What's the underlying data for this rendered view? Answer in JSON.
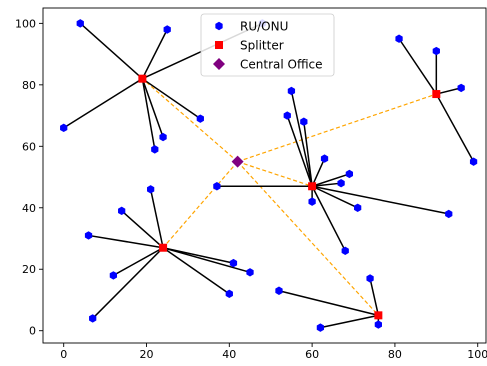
{
  "chart_data": {
    "type": "scatter",
    "xlim": [
      -5,
      102
    ],
    "ylim": [
      -4,
      105
    ],
    "x_ticks": [
      0,
      20,
      40,
      60,
      80,
      100
    ],
    "y_ticks": [
      0,
      20,
      40,
      60,
      80,
      100
    ],
    "grid": false,
    "legend_position": "top-center",
    "legend": [
      {
        "label": "RU/ONU",
        "marker": "hexagon",
        "color": "#0000ff"
      },
      {
        "label": "Splitter",
        "marker": "square",
        "color": "#ff0000"
      },
      {
        "label": "Central Office",
        "marker": "diamond",
        "color": "#800080"
      }
    ],
    "central_office": {
      "x": 42,
      "y": 55
    },
    "splitters": [
      {
        "x": 19,
        "y": 82
      },
      {
        "x": 60,
        "y": 47
      },
      {
        "x": 90,
        "y": 77
      },
      {
        "x": 24,
        "y": 27
      },
      {
        "x": 76,
        "y": 5
      }
    ],
    "ru_onus": [
      {
        "x": 4,
        "y": 100,
        "splitter": 0
      },
      {
        "x": 25,
        "y": 98,
        "splitter": 0
      },
      {
        "x": 48,
        "y": 100,
        "splitter": 0
      },
      {
        "x": 0,
        "y": 66,
        "splitter": 0
      },
      {
        "x": 33,
        "y": 69,
        "splitter": 0
      },
      {
        "x": 24,
        "y": 63,
        "splitter": 0
      },
      {
        "x": 22,
        "y": 59,
        "splitter": 0
      },
      {
        "x": 55,
        "y": 78,
        "splitter": 1
      },
      {
        "x": 54,
        "y": 70,
        "splitter": 1
      },
      {
        "x": 58,
        "y": 68,
        "splitter": 1
      },
      {
        "x": 63,
        "y": 56,
        "splitter": 1
      },
      {
        "x": 69,
        "y": 51,
        "splitter": 1
      },
      {
        "x": 67,
        "y": 48,
        "splitter": 1
      },
      {
        "x": 37,
        "y": 47,
        "splitter": 1
      },
      {
        "x": 60,
        "y": 42,
        "splitter": 1
      },
      {
        "x": 71,
        "y": 40,
        "splitter": 1
      },
      {
        "x": 93,
        "y": 38,
        "splitter": 1
      },
      {
        "x": 68,
        "y": 26,
        "splitter": 1
      },
      {
        "x": 81,
        "y": 95,
        "splitter": 2
      },
      {
        "x": 90,
        "y": 91,
        "splitter": 2
      },
      {
        "x": 96,
        "y": 79,
        "splitter": 2
      },
      {
        "x": 99,
        "y": 55,
        "splitter": 2
      },
      {
        "x": 21,
        "y": 46,
        "splitter": 3
      },
      {
        "x": 14,
        "y": 39,
        "splitter": 3
      },
      {
        "x": 6,
        "y": 31,
        "splitter": 3
      },
      {
        "x": 12,
        "y": 18,
        "splitter": 3
      },
      {
        "x": 7,
        "y": 4,
        "splitter": 3
      },
      {
        "x": 41,
        "y": 22,
        "splitter": 3
      },
      {
        "x": 45,
        "y": 19,
        "splitter": 3
      },
      {
        "x": 40,
        "y": 12,
        "splitter": 3
      },
      {
        "x": 52,
        "y": 13,
        "splitter": 4
      },
      {
        "x": 74,
        "y": 17,
        "splitter": 4
      },
      {
        "x": 62,
        "y": 1,
        "splitter": 4
      },
      {
        "x": 76,
        "y": 2,
        "splitter": 4
      }
    ],
    "colors": {
      "ru": "#0000ff",
      "splitter": "#ff0000",
      "central_office": "#800080",
      "feeder": "#ffa500",
      "distribution": "#000000"
    }
  }
}
